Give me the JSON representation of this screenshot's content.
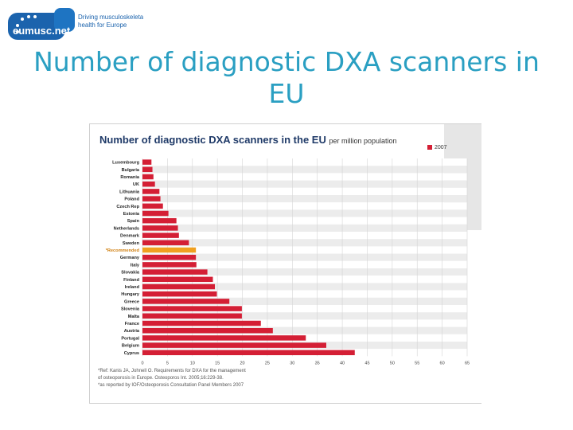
{
  "header": {
    "logo_text": "eumusc.net",
    "tagline_1": "Driving musculoskeletal",
    "tagline_2": "health for Europe",
    "title": "Number of diagnostic DXA scanners in EU"
  },
  "colors": {
    "title": "#2a9fc2",
    "bar": "#d41f35",
    "recommended_bar": "#f0a020",
    "logo_blue": "#1b63ad"
  },
  "chart_data": {
    "type": "bar",
    "orientation": "horizontal",
    "title": "Number of diagnostic DXA scanners in the EU",
    "subtitle": "per million population",
    "legend": "2007",
    "xlim": [
      0,
      65
    ],
    "xticks": [
      0,
      5,
      10,
      15,
      20,
      25,
      30,
      35,
      40,
      45,
      50,
      55,
      60,
      65
    ],
    "categories": [
      "Luxembourg",
      "Bulgaria",
      "Romania",
      "UK",
      "Lithuania",
      "Poland",
      "Czech Rep",
      "Estonia",
      "Spain",
      "Netherlands",
      "Denmark",
      "Sweden",
      "*Recommended",
      "Germany",
      "Italy",
      "Slovakia",
      "Finland",
      "Ireland",
      "Hungary",
      "Greece",
      "Slovenia",
      "Malta",
      "France",
      "Austria",
      "Portugal",
      "Belgium",
      "Cyprus"
    ],
    "values": [
      1.8,
      2.0,
      2.2,
      2.5,
      3.4,
      3.6,
      4.1,
      5.2,
      6.8,
      7.1,
      7.3,
      9.3,
      10.7,
      10.7,
      10.8,
      13.0,
      14.1,
      14.5,
      14.9,
      17.4,
      19.9,
      19.9,
      23.7,
      26.1,
      32.7,
      36.8,
      42.5
    ],
    "grid": true
  },
  "footnotes": {
    "line1": "*Ref: Kanis JA, Johnell O. Requirements for DXA for the management",
    "line2": "of osteoporosis in Europe. Osteoporos Int. 2005;16:229-38.",
    "line3": "*as reported by IOF/Osteoporosis Consultation Panel Members 2007"
  }
}
